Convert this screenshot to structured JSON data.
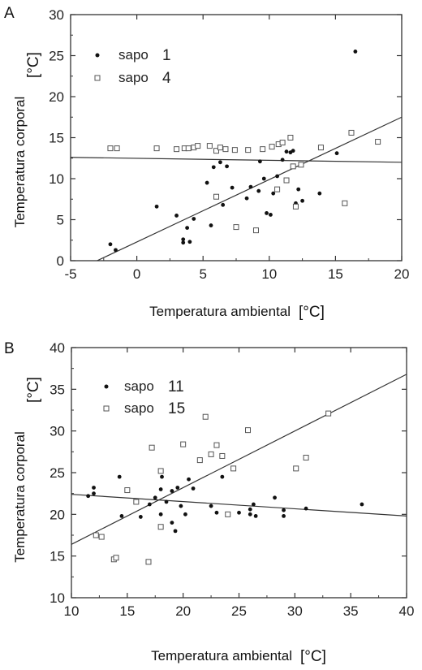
{
  "chart_data": [
    {
      "panel": "A",
      "type": "scatter",
      "xlabel": "Temperatura ambiental",
      "xunit": "[°C]",
      "ylabel": "Temperatura corporal",
      "yunit": "[°C]",
      "xlim": [
        -5,
        20
      ],
      "ylim": [
        0,
        30
      ],
      "xticks": [
        -5,
        0,
        5,
        10,
        15,
        20
      ],
      "yticks": [
        0,
        5,
        10,
        15,
        20,
        25,
        30
      ],
      "legend_position": "top-left",
      "series": [
        {
          "name": "sapo",
          "number": "1",
          "marker": "filled-circle",
          "points": [
            [
              -2,
              2
            ],
            [
              -1.6,
              1.3
            ],
            [
              1.5,
              6.6
            ],
            [
              3,
              5.5
            ],
            [
              3.5,
              2.2
            ],
            [
              3.5,
              2.6
            ],
            [
              3.8,
              4
            ],
            [
              4,
              2.3
            ],
            [
              4.3,
              5.1
            ],
            [
              5.3,
              9.5
            ],
            [
              5.6,
              4.3
            ],
            [
              5.8,
              11.4
            ],
            [
              6.3,
              12
            ],
            [
              6.5,
              6.8
            ],
            [
              6.8,
              11.5
            ],
            [
              7.2,
              8.9
            ],
            [
              8.3,
              7.6
            ],
            [
              8.6,
              9
            ],
            [
              9.2,
              8.5
            ],
            [
              9.3,
              12.1
            ],
            [
              9.6,
              10
            ],
            [
              9.8,
              5.8
            ],
            [
              10.1,
              5.6
            ],
            [
              10.3,
              8.2
            ],
            [
              10.6,
              10.3
            ],
            [
              11,
              12.3
            ],
            [
              11.3,
              13.3
            ],
            [
              11.6,
              13.2
            ],
            [
              11.8,
              13.4
            ],
            [
              12,
              7
            ],
            [
              12.2,
              8.7
            ],
            [
              12.5,
              7.3
            ],
            [
              13.8,
              8.2
            ],
            [
              15.1,
              13.1
            ],
            [
              16.5,
              25.5
            ]
          ],
          "trend": [
            [
              -3,
              0
            ],
            [
              20,
              17.5
            ]
          ]
        },
        {
          "name": "sapo",
          "number": "4",
          "marker": "open-square",
          "points": [
            [
              -2,
              13.7
            ],
            [
              -1.5,
              13.7
            ],
            [
              1.5,
              13.7
            ],
            [
              3,
              13.6
            ],
            [
              3.6,
              13.7
            ],
            [
              3.9,
              13.7
            ],
            [
              4.3,
              13.8
            ],
            [
              4.6,
              14
            ],
            [
              5.5,
              14
            ],
            [
              6,
              13.4
            ],
            [
              6.3,
              13.8
            ],
            [
              6.7,
              13.6
            ],
            [
              7.4,
              13.5
            ],
            [
              8.4,
              13.5
            ],
            [
              9.5,
              13.6
            ],
            [
              10.2,
              13.9
            ],
            [
              10.7,
              14.2
            ],
            [
              11,
              14.4
            ],
            [
              11.6,
              15
            ],
            [
              6,
              7.8
            ],
            [
              7.5,
              4.1
            ],
            [
              9,
              3.7
            ],
            [
              10.6,
              8.7
            ],
            [
              11.3,
              9.8
            ],
            [
              11.8,
              11.5
            ],
            [
              12,
              6.6
            ],
            [
              13.9,
              13.8
            ],
            [
              15.7,
              7
            ],
            [
              16.2,
              15.6
            ],
            [
              18.2,
              14.5
            ],
            [
              12.4,
              11.7
            ]
          ],
          "trend": [
            [
              -5,
              12.6
            ],
            [
              20,
              12
            ]
          ]
        }
      ]
    },
    {
      "panel": "B",
      "type": "scatter",
      "xlabel": "Temperatura ambiental",
      "xunit": "[°C]",
      "ylabel": "Temperatura corporal",
      "yunit": "[°C]",
      "xlim": [
        10,
        40
      ],
      "ylim": [
        10,
        40
      ],
      "xticks": [
        10,
        15,
        20,
        25,
        30,
        35,
        40
      ],
      "yticks": [
        10,
        15,
        20,
        25,
        30,
        35,
        40
      ],
      "legend_position": "top-left",
      "series": [
        {
          "name": "sapo",
          "number": "11",
          "marker": "filled-circle",
          "points": [
            [
              11.5,
              22.2
            ],
            [
              12,
              22.5
            ],
            [
              12,
              23.2
            ],
            [
              14.3,
              24.5
            ],
            [
              14.5,
              19.8
            ],
            [
              16.2,
              19.7
            ],
            [
              17,
              21.2
            ],
            [
              17.5,
              22
            ],
            [
              18,
              20
            ],
            [
              18,
              23
            ],
            [
              18.1,
              24.5
            ],
            [
              18.5,
              21.5
            ],
            [
              19,
              19
            ],
            [
              19,
              22.8
            ],
            [
              19.3,
              18
            ],
            [
              19.5,
              23.2
            ],
            [
              19.8,
              21
            ],
            [
              20.2,
              20
            ],
            [
              20.5,
              24.2
            ],
            [
              20.9,
              23.1
            ],
            [
              22.5,
              21
            ],
            [
              23,
              20.2
            ],
            [
              23.5,
              24.5
            ],
            [
              25,
              20.2
            ],
            [
              26,
              20
            ],
            [
              26,
              20.6
            ],
            [
              26.3,
              21.2
            ],
            [
              26.5,
              19.8
            ],
            [
              28.2,
              22
            ],
            [
              29,
              20.5
            ],
            [
              29,
              19.8
            ],
            [
              31,
              20.7
            ],
            [
              36,
              21.2
            ]
          ],
          "trend": [
            [
              10,
              22.4
            ],
            [
              40,
              19.8
            ]
          ]
        },
        {
          "name": "sapo",
          "number": "15",
          "marker": "open-square",
          "points": [
            [
              12.2,
              17.5
            ],
            [
              12.7,
              17.3
            ],
            [
              13.8,
              14.6
            ],
            [
              14,
              14.8
            ],
            [
              15,
              22.9
            ],
            [
              15.8,
              21.5
            ],
            [
              16.9,
              14.3
            ],
            [
              17.2,
              28
            ],
            [
              18,
              18.5
            ],
            [
              18,
              25.2
            ],
            [
              20,
              28.4
            ],
            [
              21.5,
              26.5
            ],
            [
              22,
              31.7
            ],
            [
              22.5,
              27.2
            ],
            [
              23,
              28.3
            ],
            [
              23.5,
              27
            ],
            [
              24,
              20
            ],
            [
              24.5,
              25.5
            ],
            [
              25.8,
              30.1
            ],
            [
              30.1,
              25.5
            ],
            [
              31,
              26.8
            ],
            [
              33,
              32.1
            ]
          ],
          "trend": [
            [
              10,
              16.4
            ],
            [
              40,
              36.8
            ]
          ]
        }
      ]
    }
  ],
  "panels": {
    "a": {
      "label": "A"
    },
    "b": {
      "label": "B"
    }
  }
}
